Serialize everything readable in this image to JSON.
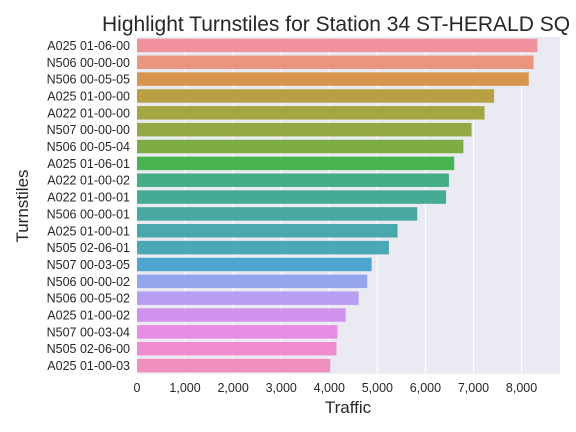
{
  "chart_data": {
    "type": "bar",
    "orientation": "horizontal",
    "title": "Highlight Turnstiles for Station 34 ST-HERALD SQ",
    "xlabel": "Traffic",
    "ylabel": "Turnstiles",
    "xlim": [
      0,
      8800
    ],
    "xticks": [
      0,
      1000,
      2000,
      3000,
      4000,
      5000,
      6000,
      7000,
      8000
    ],
    "xtick_labels": [
      "0",
      "1,000",
      "2,000",
      "3,000",
      "4,000",
      "5,000",
      "6,000",
      "7,000",
      "8,000"
    ],
    "grid": true,
    "background_color": "#eaeaf2",
    "categories": [
      "A025 01-06-00",
      "N506 00-00-00",
      "N506 00-05-05",
      "A025 01-00-00",
      "A022 01-00-00",
      "N507 00-00-00",
      "N506 00-05-04",
      "A025 01-06-01",
      "A022 01-00-02",
      "A022 01-00-01",
      "N506 00-00-01",
      "A025 01-00-01",
      "N505 02-06-01",
      "N507 00-03-05",
      "N506 00-00-02",
      "N506 00-05-02",
      "A025 01-00-02",
      "N507 00-03-04",
      "N505 02-06-00",
      "A025 01-00-03"
    ],
    "values": [
      8330,
      8250,
      8150,
      7430,
      7230,
      6960,
      6790,
      6600,
      6490,
      6430,
      5830,
      5420,
      5240,
      4880,
      4790,
      4610,
      4340,
      4170,
      4150,
      4020
    ],
    "colors": [
      "#f0919d",
      "#ea957f",
      "#d9944e",
      "#b9a044",
      "#a3a643",
      "#93a944",
      "#7eac45",
      "#48b450",
      "#44ae84",
      "#46ab95",
      "#47a9a1",
      "#49a8ab",
      "#4ba7b6",
      "#4ea5d0",
      "#93a5ec",
      "#b79ef0",
      "#cf93ee",
      "#e88be5",
      "#ee8ccf",
      "#ef8fbd"
    ]
  }
}
